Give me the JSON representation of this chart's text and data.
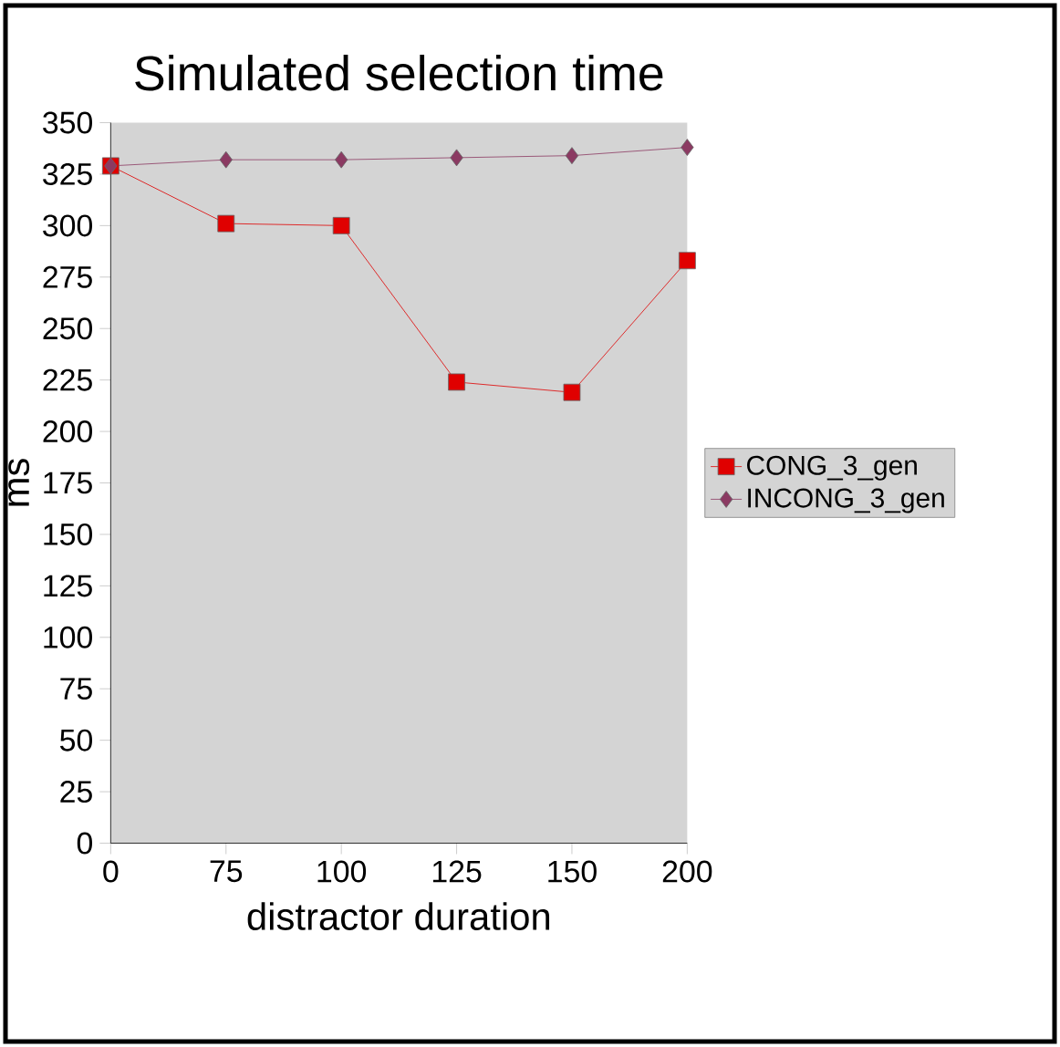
{
  "chart_data": {
    "type": "line",
    "title": "Simulated selection time",
    "xlabel": "distractor duration",
    "ylabel": "ms",
    "categories": [
      "0",
      "75",
      "100",
      "125",
      "150",
      "200"
    ],
    "series": [
      {
        "name": "CONG_3_gen",
        "color": "#e00000",
        "marker": "square",
        "values": [
          329,
          301,
          300,
          224,
          219,
          283
        ]
      },
      {
        "name": "INCONG_3_gen",
        "color": "#8b3a62",
        "marker": "diamond",
        "values": [
          329,
          332,
          332,
          333,
          334,
          338
        ]
      }
    ],
    "ylim": [
      0,
      350
    ],
    "yticks": [
      0,
      25,
      50,
      75,
      100,
      125,
      150,
      175,
      200,
      225,
      250,
      275,
      300,
      325,
      350
    ],
    "legend": "right",
    "grid": false
  }
}
